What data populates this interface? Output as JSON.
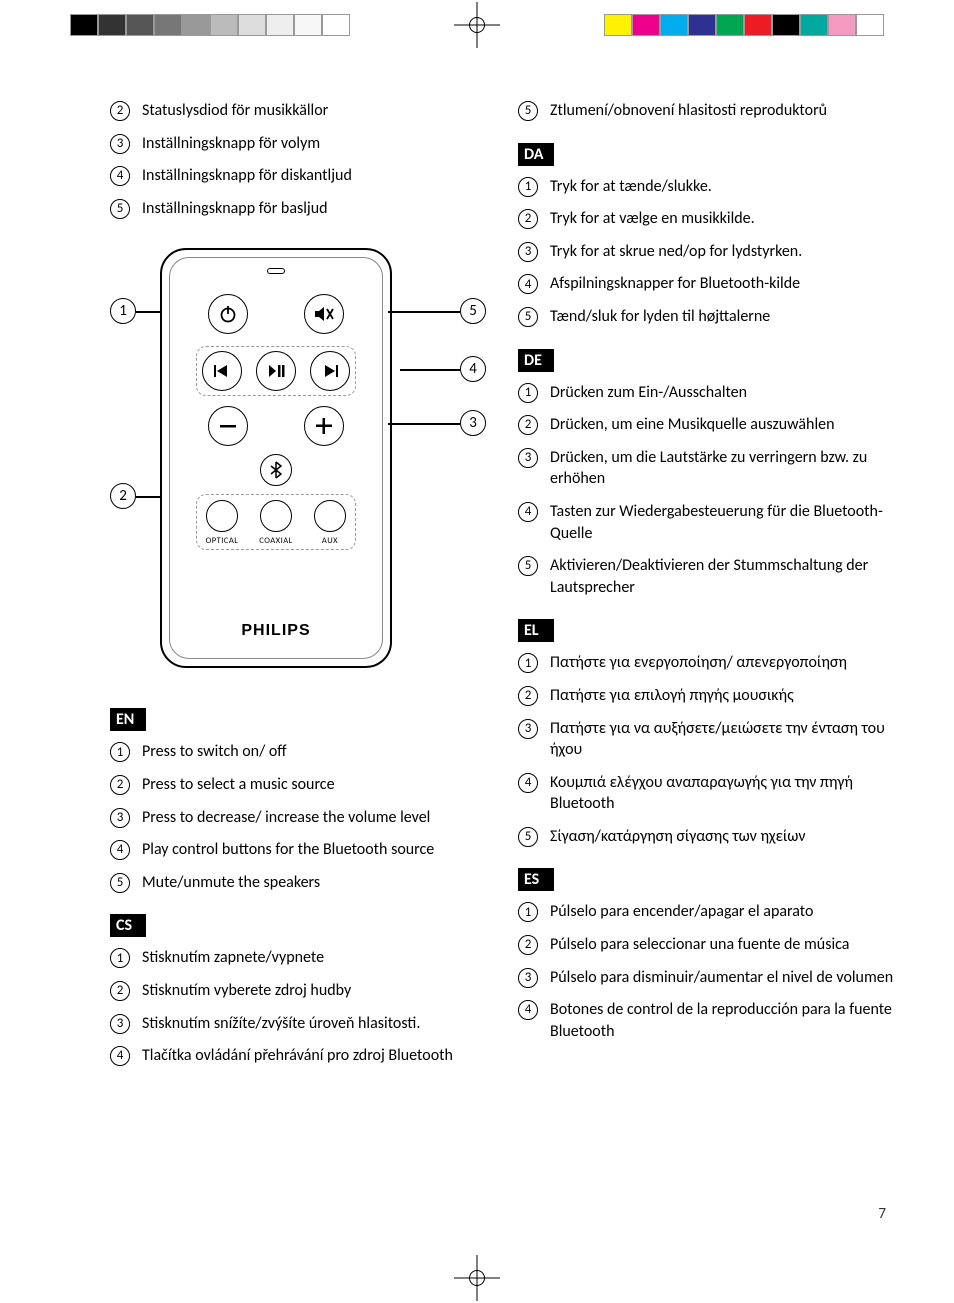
{
  "swatches_left": [
    "#000000",
    "#333333",
    "#555555",
    "#777777",
    "#999999",
    "#bbbbbb",
    "#dddddd",
    "#eeeeee",
    "#f7f7f7",
    "#ffffff"
  ],
  "swatches_right": [
    "#fff200",
    "#ec008c",
    "#00aeef",
    "#2e3192",
    "#00a651",
    "#ed1c24",
    "#000000",
    "#00a99d",
    "#f49ac1",
    "#ffffff"
  ],
  "page_number": "7",
  "remote_brand": "PHILIPS",
  "remote_sources": [
    "OPTICAL",
    "COAXIAL",
    "AUX"
  ],
  "sv_partial": [
    {
      "n": "2",
      "t": "Statuslysdiod för musikkällor"
    },
    {
      "n": "3",
      "t": "Inställningsknapp för volym"
    },
    {
      "n": "4",
      "t": "Inställningsknapp för diskantljud"
    },
    {
      "n": "5",
      "t": "Inställningsknapp för basljud"
    }
  ],
  "langs": {
    "EN": [
      {
        "n": "1",
        "t": "Press to switch on/ off"
      },
      {
        "n": "2",
        "t": "Press to select a music source"
      },
      {
        "n": "3",
        "t": "Press to decrease/ increase the volume level"
      },
      {
        "n": "4",
        "t": "Play control buttons for the Bluetooth source"
      },
      {
        "n": "5",
        "t": "Mute/unmute the speakers"
      }
    ],
    "CS": [
      {
        "n": "1",
        "t": "Stisknutím zapnete/vypnete"
      },
      {
        "n": "2",
        "t": "Stisknutím vyberete zdroj hudby"
      },
      {
        "n": "3",
        "t": "Stisknutím snížíte/zvýšíte úroveň hlasitosti."
      },
      {
        "n": "4",
        "t": "Tlačítka ovládání přehrávání pro zdroj Bluetooth"
      }
    ],
    "CS_cont": [
      {
        "n": "5",
        "t": "Ztlumení/obnovení hlasitosti reproduktorů"
      }
    ],
    "DA": [
      {
        "n": "1",
        "t": "Tryk for at tænde/slukke."
      },
      {
        "n": "2",
        "t": "Tryk for at vælge en musikkilde."
      },
      {
        "n": "3",
        "t": "Tryk for at skrue ned/op for lydstyrken."
      },
      {
        "n": "4",
        "t": "Afspilningsknapper for Bluetooth-kilde"
      },
      {
        "n": "5",
        "t": "Tænd/sluk for lyden til højttalerne"
      }
    ],
    "DE": [
      {
        "n": "1",
        "t": "Drücken zum Ein-/Ausschalten"
      },
      {
        "n": "2",
        "t": "Drücken, um eine Musikquelle auszuwählen"
      },
      {
        "n": "3",
        "t": "Drücken, um die Lautstärke zu verringern bzw. zu erhöhen"
      },
      {
        "n": "4",
        "t": "Tasten zur Wiedergabesteuerung für die Bluetooth-Quelle"
      },
      {
        "n": "5",
        "t": "Aktivieren/Deaktivieren der Stummschaltung der Lautsprecher"
      }
    ],
    "EL": [
      {
        "n": "1",
        "t": "Πατήστε για ενεργοποίηση/ απενεργοποίηση"
      },
      {
        "n": "2",
        "t": "Πατήστε για επιλογή πηγής μουσικής"
      },
      {
        "n": "3",
        "t": "Πατήστε για να αυξήσετε/μειώσετε την ένταση του ήχου"
      },
      {
        "n": "4",
        "t": "Κουμπιά ελέγχου αναπαραγωγής για την πηγή Bluetooth"
      },
      {
        "n": "5",
        "t": "Σίγαση/κατάργηση σίγασης των ηχείων"
      }
    ],
    "ES": [
      {
        "n": "1",
        "t": "Púlselo para encender/apagar el aparato"
      },
      {
        "n": "2",
        "t": "Púlselo para seleccionar una fuente de música"
      },
      {
        "n": "3",
        "t": "Púlselo para disminuir/aumentar el nivel de volumen"
      },
      {
        "n": "4",
        "t": "Botones de control de la reproducción para la fuente Bluetooth"
      }
    ]
  }
}
